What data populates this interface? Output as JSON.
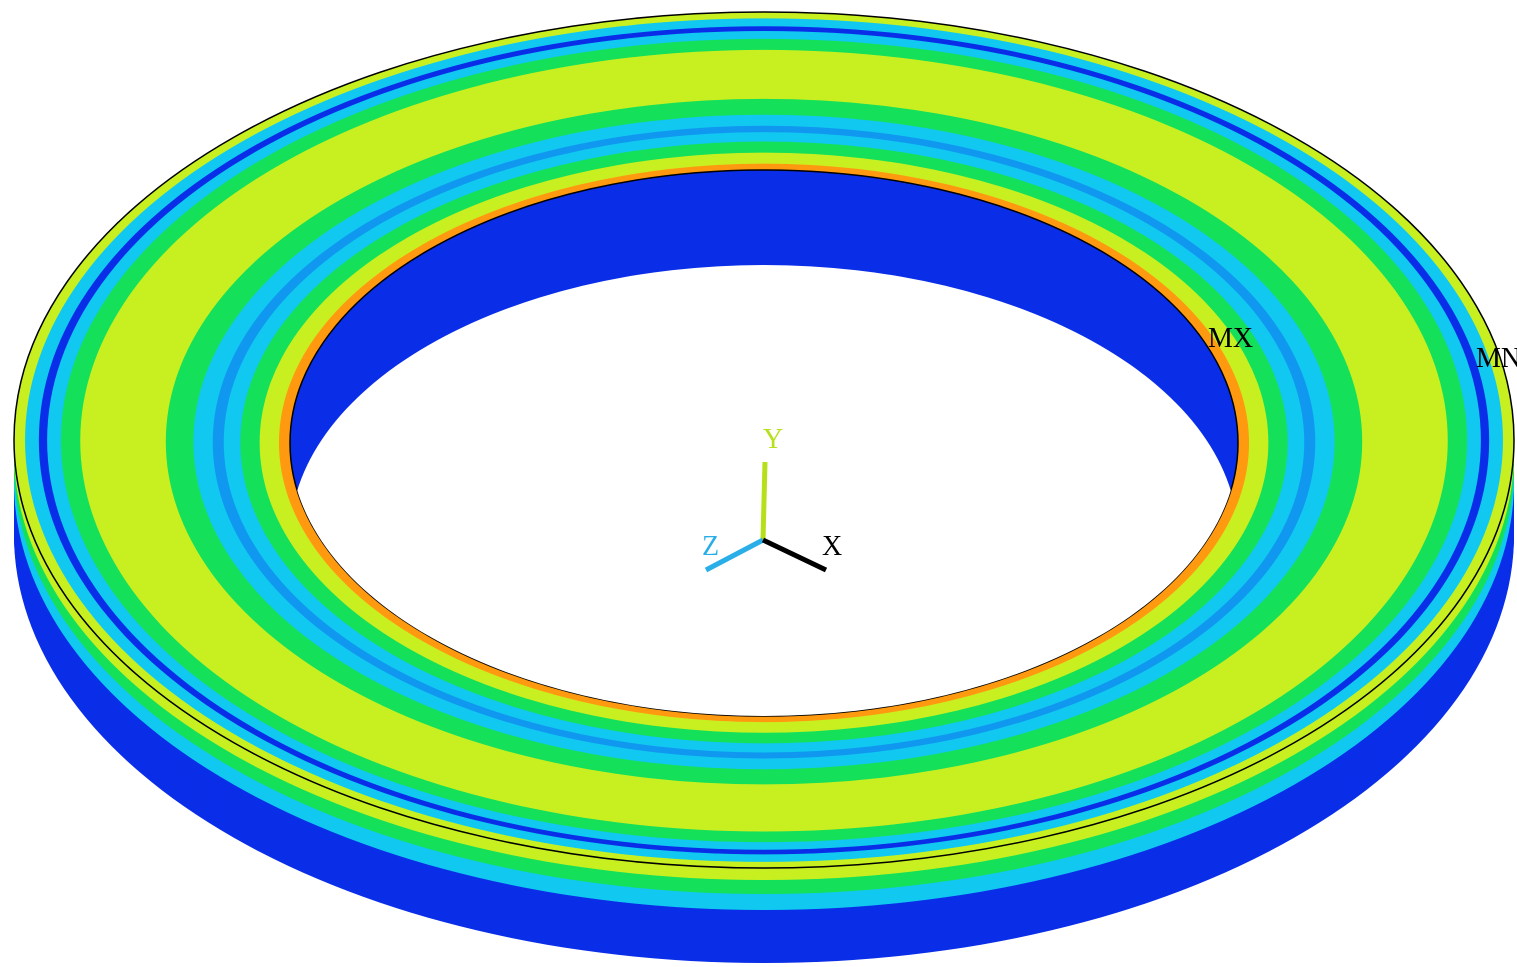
{
  "labels": {
    "max": "MX",
    "min": "MN"
  },
  "axes": {
    "y": "Y",
    "z": "Z",
    "x": "X"
  }
}
